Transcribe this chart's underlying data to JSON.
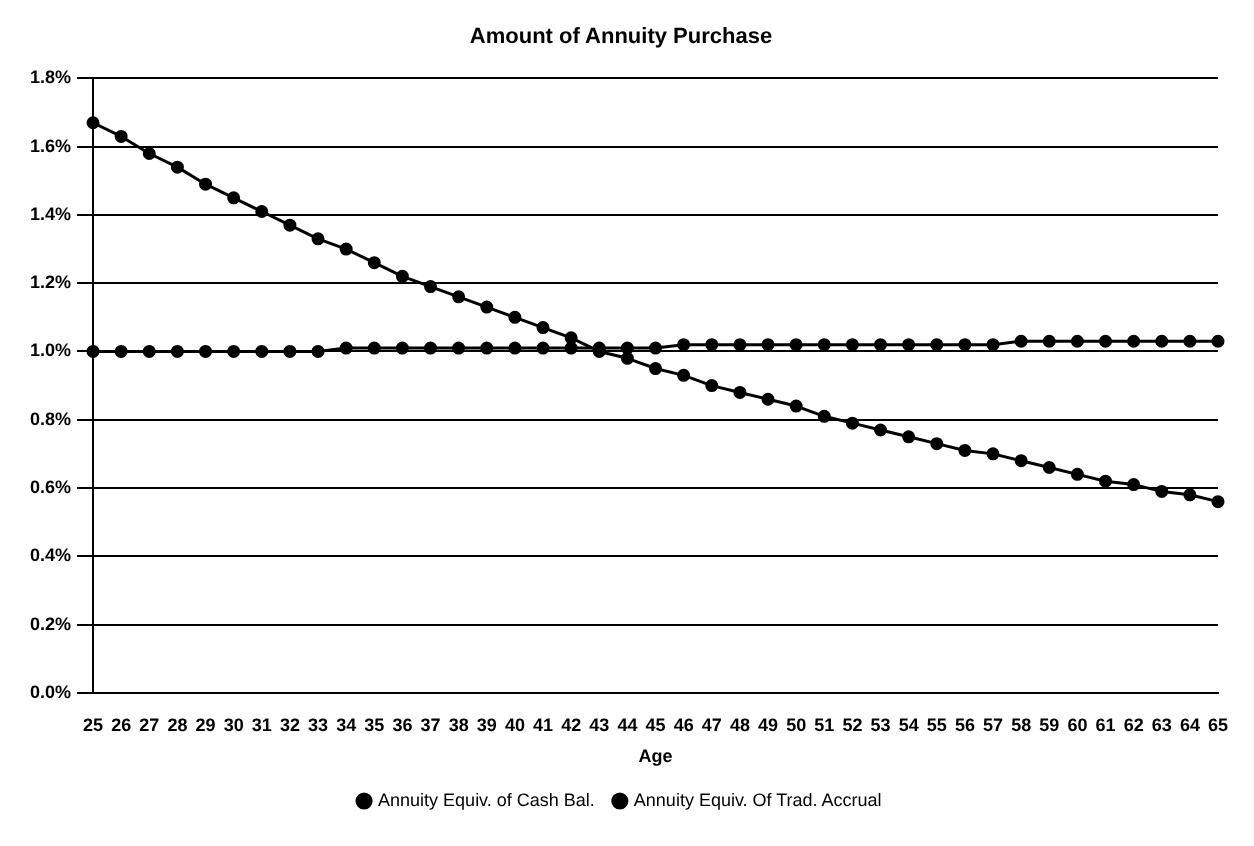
{
  "chart_data": {
    "type": "line",
    "title": "Amount of Annuity Purchase",
    "xlabel": "Age",
    "categories": [
      "25",
      "26",
      "27",
      "28",
      "29",
      "30",
      "31",
      "32",
      "33",
      "34",
      "35",
      "36",
      "37",
      "38",
      "39",
      "40",
      "41",
      "42",
      "43",
      "44",
      "45",
      "46",
      "47",
      "48",
      "49",
      "50",
      "51",
      "52",
      "53",
      "54",
      "55",
      "56",
      "57",
      "58",
      "59",
      "60",
      "61",
      "62",
      "63",
      "64",
      "65"
    ],
    "series": [
      {
        "name": "Annuity Equiv. of Cash Bal.",
        "color": "#000000",
        "values": [
          1.67,
          1.63,
          1.58,
          1.54,
          1.49,
          1.45,
          1.41,
          1.37,
          1.33,
          1.3,
          1.26,
          1.22,
          1.19,
          1.16,
          1.13,
          1.1,
          1.07,
          1.04,
          1.0,
          0.98,
          0.95,
          0.93,
          0.9,
          0.88,
          0.86,
          0.84,
          0.81,
          0.79,
          0.77,
          0.75,
          0.73,
          0.71,
          0.7,
          0.68,
          0.66,
          0.64,
          0.62,
          0.61,
          0.59,
          0.58,
          0.56
        ]
      },
      {
        "name": "Annuity Equiv. Of Trad. Accrual",
        "color": "#000000",
        "values": [
          1.0,
          1.0,
          1.0,
          1.0,
          1.0,
          1.0,
          1.0,
          1.0,
          1.0,
          1.01,
          1.01,
          1.01,
          1.01,
          1.01,
          1.01,
          1.01,
          1.01,
          1.01,
          1.01,
          1.01,
          1.01,
          1.02,
          1.02,
          1.02,
          1.02,
          1.02,
          1.02,
          1.02,
          1.02,
          1.02,
          1.02,
          1.02,
          1.02,
          1.03,
          1.03,
          1.03,
          1.03,
          1.03,
          1.03,
          1.03,
          1.03
        ]
      }
    ],
    "ylim": [
      0,
      1.8
    ],
    "yticks": [
      {
        "value": 0,
        "label": "0.0%"
      },
      {
        "value": 0.2,
        "label": "0.2%"
      },
      {
        "value": 0.4,
        "label": "0.4%"
      },
      {
        "value": 0.6,
        "label": "0.6%"
      },
      {
        "value": 0.8,
        "label": "0.8%"
      },
      {
        "value": 1.0,
        "label": "1.0%"
      },
      {
        "value": 1.2,
        "label": "1.2%"
      },
      {
        "value": 1.4,
        "label": "1.4%"
      },
      {
        "value": 1.6,
        "label": "1.6%"
      },
      {
        "value": 1.8,
        "label": "1.8%"
      }
    ],
    "grid": "y",
    "legend": "bottom",
    "marker": "circle",
    "line_style": "solid"
  }
}
